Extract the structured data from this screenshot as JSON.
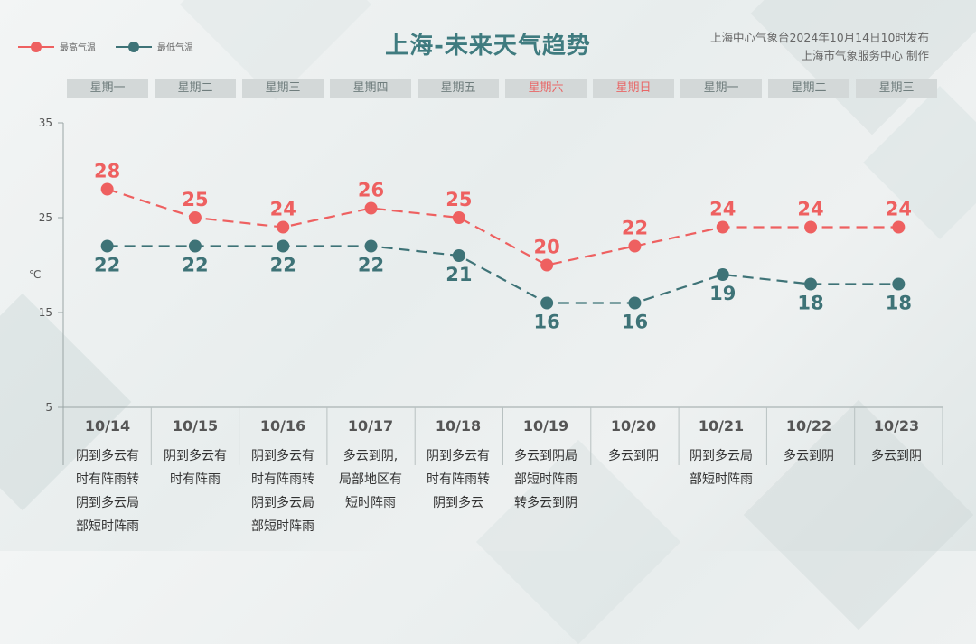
{
  "title": "上海-未来天气趋势",
  "source_lines": [
    "上海中心气象台2024年10月14日10时发布",
    "上海市气象服务中心 制作"
  ],
  "legend": [
    {
      "label": "最高气温",
      "color": "#ee6060"
    },
    {
      "label": "最低气温",
      "color": "#3e7377"
    }
  ],
  "weekdays": [
    "星期一",
    "星期二",
    "星期三",
    "星期四",
    "星期五",
    "星期六",
    "星期日",
    "星期一",
    "星期二",
    "星期三"
  ],
  "weekend_color": "#e86767",
  "days": [
    {
      "date": "10/14",
      "weather": [
        "阴到多云有",
        "时有阵雨转",
        "阴到多云局",
        "部短时阵雨"
      ]
    },
    {
      "date": "10/15",
      "weather": [
        "阴到多云有",
        "时有阵雨"
      ]
    },
    {
      "date": "10/16",
      "weather": [
        "阴到多云有",
        "时有阵雨转",
        "阴到多云局",
        "部短时阵雨"
      ]
    },
    {
      "date": "10/17",
      "weather": [
        "多云到阴,",
        "局部地区有",
        "短时阵雨"
      ]
    },
    {
      "date": "10/18",
      "weather": [
        "阴到多云有",
        "时有阵雨转",
        "阴到多云"
      ]
    },
    {
      "date": "10/19",
      "weather": [
        "多云到阴局",
        "部短时阵雨",
        "转多云到阴"
      ]
    },
    {
      "date": "10/20",
      "weather": [
        "多云到阴"
      ]
    },
    {
      "date": "10/21",
      "weather": [
        "阴到多云局",
        "部短时阵雨"
      ]
    },
    {
      "date": "10/22",
      "weather": [
        "多云到阴"
      ]
    },
    {
      "date": "10/23",
      "weather": [
        "多云到阴"
      ]
    }
  ],
  "chart_data": {
    "type": "line",
    "categories": [
      "10/14",
      "10/15",
      "10/16",
      "10/17",
      "10/18",
      "10/19",
      "10/20",
      "10/21",
      "10/22",
      "10/23"
    ],
    "ylabel": "℃",
    "ylim": [
      5,
      35
    ],
    "yticks": [
      5,
      15,
      25,
      35
    ],
    "series": [
      {
        "name": "最高气温",
        "color": "#ee6060",
        "values": [
          28,
          25,
          24,
          26,
          25,
          20,
          22,
          24,
          24,
          24
        ]
      },
      {
        "name": "最低气温",
        "color": "#3e7377",
        "values": [
          22,
          22,
          22,
          22,
          21,
          16,
          16,
          19,
          18,
          18
        ]
      }
    ]
  }
}
